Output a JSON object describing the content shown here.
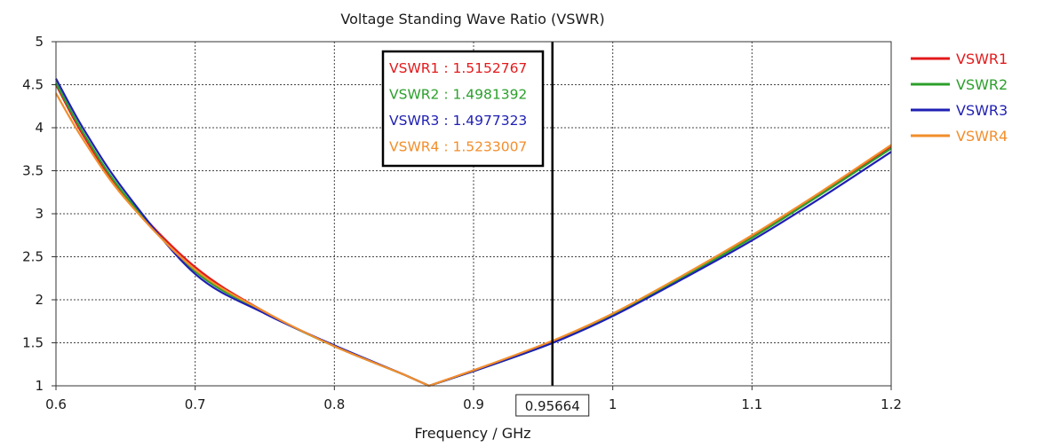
{
  "chart_data": {
    "type": "line",
    "title": "Voltage Standing Wave Ratio (VSWR)",
    "xlabel": "Frequency / GHz",
    "ylabel": "",
    "xlim": [
      0.6,
      1.2
    ],
    "ylim": [
      1,
      5
    ],
    "grid": true,
    "legend_position": "right",
    "x_ticks": [
      {
        "value": 0.6,
        "label": "0.6"
      },
      {
        "value": 0.7,
        "label": "0.7"
      },
      {
        "value": 0.8,
        "label": "0.8"
      },
      {
        "value": 0.9,
        "label": "0.9"
      },
      {
        "value": 1.0,
        "label": "1"
      },
      {
        "value": 1.1,
        "label": "1.1"
      },
      {
        "value": 1.2,
        "label": "1.2"
      }
    ],
    "y_ticks": [
      {
        "value": 1,
        "label": "1"
      },
      {
        "value": 1.5,
        "label": "1.5"
      },
      {
        "value": 2,
        "label": "2"
      },
      {
        "value": 2.5,
        "label": "2.5"
      },
      {
        "value": 3,
        "label": "3"
      },
      {
        "value": 3.5,
        "label": "3.5"
      },
      {
        "value": 4,
        "label": "4"
      },
      {
        "value": 4.5,
        "label": "4.5"
      },
      {
        "value": 5,
        "label": "5"
      }
    ],
    "marker": {
      "x": 0.95664,
      "label": "0.95664",
      "readouts": [
        {
          "series": "VSWR1",
          "text": "VSWR1 : 1.5152767"
        },
        {
          "series": "VSWR2",
          "text": "VSWR2 : 1.4981392"
        },
        {
          "series": "VSWR3",
          "text": "VSWR3 : 1.4977323"
        },
        {
          "series": "VSWR4",
          "text": "VSWR4 : 1.5233007"
        }
      ]
    },
    "series": [
      {
        "name": "VSWR1",
        "color": "#e31a1c",
        "x": [
          0.6,
          0.62,
          0.65,
          0.7,
          0.75,
          0.8,
          0.85,
          0.868,
          0.9,
          0.95664,
          1.0,
          1.05,
          1.1,
          1.15,
          1.2
        ],
        "y": [
          4.5,
          3.9,
          3.2,
          2.38,
          1.86,
          1.46,
          1.13,
          1.0,
          1.18,
          1.5152767,
          1.83,
          2.27,
          2.73,
          3.24,
          3.78
        ]
      },
      {
        "name": "VSWR2",
        "color": "#2ca02c",
        "x": [
          0.6,
          0.62,
          0.65,
          0.7,
          0.75,
          0.8,
          0.85,
          0.868,
          0.9,
          0.95664,
          1.0,
          1.05,
          1.1,
          1.15,
          1.2
        ],
        "y": [
          4.52,
          3.93,
          3.21,
          2.33,
          1.85,
          1.46,
          1.13,
          1.0,
          1.17,
          1.4981392,
          1.82,
          2.26,
          2.72,
          3.23,
          3.76
        ]
      },
      {
        "name": "VSWR3",
        "color": "#1f1fb4",
        "x": [
          0.6,
          0.62,
          0.65,
          0.7,
          0.75,
          0.8,
          0.85,
          0.868,
          0.9,
          0.95664,
          1.0,
          1.05,
          1.1,
          1.15,
          1.2
        ],
        "y": [
          4.57,
          3.98,
          3.25,
          2.3,
          1.84,
          1.47,
          1.13,
          1.0,
          1.17,
          1.4977323,
          1.81,
          2.24,
          2.69,
          3.19,
          3.72
        ]
      },
      {
        "name": "VSWR4",
        "color": "#f28e2b",
        "x": [
          0.6,
          0.62,
          0.65,
          0.7,
          0.75,
          0.8,
          0.85,
          0.868,
          0.9,
          0.95664,
          1.0,
          1.05,
          1.1,
          1.15,
          1.2
        ],
        "y": [
          4.4,
          3.85,
          3.17,
          2.35,
          1.86,
          1.46,
          1.13,
          1.0,
          1.18,
          1.5233007,
          1.84,
          2.28,
          2.75,
          3.26,
          3.8
        ]
      }
    ]
  }
}
